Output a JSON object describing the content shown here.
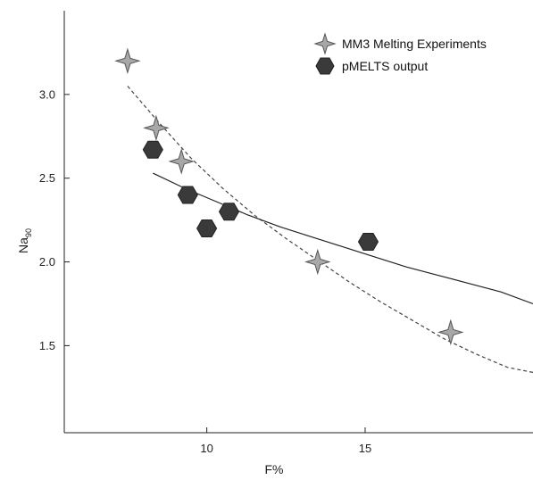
{
  "chart_data": {
    "type": "scatter",
    "xlabel": "F%",
    "ylabel_main": "Na",
    "ylabel_sub": "90",
    "xlim": [
      5.5,
      20.3
    ],
    "ylim": [
      0.98,
      3.5
    ],
    "x_ticks": [
      {
        "value": 10,
        "label": "10"
      },
      {
        "value": 15,
        "label": "15"
      }
    ],
    "y_ticks": [
      {
        "value": 1.5,
        "label": "1.5"
      },
      {
        "value": 2.0,
        "label": "2.0"
      },
      {
        "value": 2.5,
        "label": "2.5"
      },
      {
        "value": 3.0,
        "label": "3.0"
      }
    ],
    "legend_position": "top-right",
    "series": [
      {
        "name": "MM3 Melting Experiments",
        "marker": "star",
        "fill": "#a8a8a8",
        "stroke": "#555555",
        "points": [
          {
            "x": 7.5,
            "y": 3.2
          },
          {
            "x": 8.4,
            "y": 2.8
          },
          {
            "x": 9.2,
            "y": 2.6
          },
          {
            "x": 13.5,
            "y": 2.0
          },
          {
            "x": 17.7,
            "y": 1.58
          }
        ]
      },
      {
        "name": "pMELTS output",
        "marker": "hexagon",
        "fill": "#3a3a3a",
        "stroke": "#222222",
        "points": [
          {
            "x": 8.3,
            "y": 2.67
          },
          {
            "x": 9.4,
            "y": 2.4
          },
          {
            "x": 10.0,
            "y": 2.2
          },
          {
            "x": 10.7,
            "y": 2.3
          },
          {
            "x": 15.1,
            "y": 2.12
          }
        ]
      }
    ],
    "fit_lines": [
      {
        "style": "dashed",
        "color": "#444444",
        "x": [
          7.5,
          8.5,
          9.5,
          10.5,
          11.5,
          12.5,
          13.5,
          14.5,
          15.5,
          16.5,
          17.5,
          18.5,
          19.5,
          20.3
        ],
        "y": [
          3.05,
          2.83,
          2.62,
          2.44,
          2.28,
          2.14,
          2.01,
          1.88,
          1.76,
          1.65,
          1.54,
          1.45,
          1.37,
          1.34
        ]
      },
      {
        "style": "solid",
        "color": "#222222",
        "x": [
          8.3,
          9.3,
          10.3,
          11.3,
          12.3,
          13.3,
          14.3,
          15.3,
          16.3,
          17.3,
          18.3,
          19.3,
          20.3
        ],
        "y": [
          2.53,
          2.44,
          2.36,
          2.28,
          2.21,
          2.15,
          2.09,
          2.03,
          1.97,
          1.92,
          1.87,
          1.82,
          1.75
        ]
      }
    ]
  }
}
